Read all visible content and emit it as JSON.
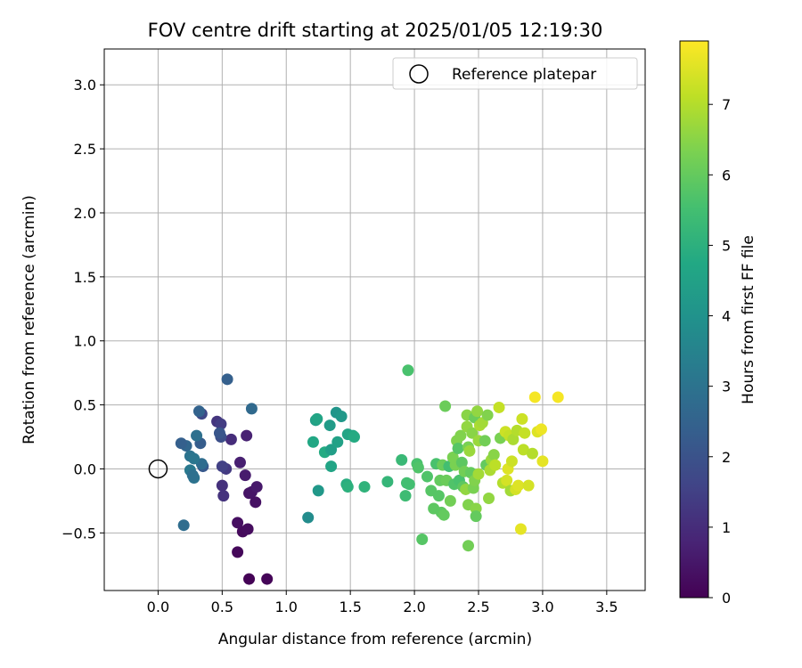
{
  "chart_data": {
    "type": "scatter",
    "title": "FOV centre drift starting at 2025/01/05 12:19:30",
    "xlabel": "Angular distance from reference (arcmin)",
    "ylabel": "Rotation from reference (arcmin)",
    "xlim": [
      -0.42,
      3.8
    ],
    "ylim": [
      -0.95,
      3.28
    ],
    "x_ticks": [
      0.0,
      0.5,
      1.0,
      1.5,
      2.0,
      2.5,
      3.0,
      3.5
    ],
    "x_tick_labels": [
      "0.0",
      "0.5",
      "1.0",
      "1.5",
      "2.0",
      "2.5",
      "3.0",
      "3.5"
    ],
    "y_ticks": [
      -0.5,
      0.0,
      0.5,
      1.0,
      1.5,
      2.0,
      2.5,
      3.0
    ],
    "y_tick_labels": [
      "−0.5",
      "0.0",
      "0.5",
      "1.0",
      "1.5",
      "2.0",
      "2.5",
      "3.0"
    ],
    "grid": true,
    "legend": {
      "position": "top-right",
      "entries": [
        "Reference platepar"
      ]
    },
    "reference": {
      "name": "Reference platepar",
      "x": 0.0,
      "y": 0.0
    },
    "colorbar": {
      "label": "Hours from first FF file",
      "range": [
        0,
        7.9
      ],
      "ticks": [
        0,
        1,
        2,
        3,
        4,
        5,
        6,
        7
      ],
      "tick_labels": [
        "0",
        "1",
        "2",
        "3",
        "4",
        "5",
        "6",
        "7"
      ],
      "colormap": "viridis"
    },
    "points": [
      {
        "x": 0.71,
        "y": -0.86,
        "c": 0.05
      },
      {
        "x": 0.85,
        "y": -0.86,
        "c": 0.1
      },
      {
        "x": 0.62,
        "y": -0.65,
        "c": 0.15
      },
      {
        "x": 0.66,
        "y": -0.49,
        "c": 0.2
      },
      {
        "x": 0.7,
        "y": -0.47,
        "c": 0.25
      },
      {
        "x": 0.62,
        "y": -0.42,
        "c": 0.3
      },
      {
        "x": 0.76,
        "y": -0.26,
        "c": 0.35
      },
      {
        "x": 0.71,
        "y": -0.19,
        "c": 0.4
      },
      {
        "x": 0.73,
        "y": -0.18,
        "c": 0.45
      },
      {
        "x": 0.77,
        "y": -0.14,
        "c": 0.55
      },
      {
        "x": 0.68,
        "y": -0.05,
        "c": 0.6
      },
      {
        "x": 0.64,
        "y": 0.05,
        "c": 0.7
      },
      {
        "x": 0.69,
        "y": 0.26,
        "c": 0.75
      },
      {
        "x": 0.57,
        "y": 0.23,
        "c": 1.0
      },
      {
        "x": 0.5,
        "y": -0.13,
        "c": 1.1
      },
      {
        "x": 0.51,
        "y": -0.21,
        "c": 1.15
      },
      {
        "x": 0.46,
        "y": 0.37,
        "c": 1.2
      },
      {
        "x": 0.53,
        "y": 0.0,
        "c": 1.3
      },
      {
        "x": 0.49,
        "y": 0.35,
        "c": 1.4
      },
      {
        "x": 0.5,
        "y": 0.02,
        "c": 1.5
      },
      {
        "x": 0.34,
        "y": 0.43,
        "c": 1.7
      },
      {
        "x": 0.49,
        "y": 0.25,
        "c": 1.9
      },
      {
        "x": 0.48,
        "y": 0.28,
        "c": 2.1
      },
      {
        "x": 0.54,
        "y": 0.7,
        "c": 2.4
      },
      {
        "x": 0.73,
        "y": 0.47,
        "c": 2.7
      },
      {
        "x": 0.32,
        "y": 0.45,
        "c": 2.5
      },
      {
        "x": 0.33,
        "y": 0.2,
        "c": 2.3
      },
      {
        "x": 0.22,
        "y": 0.18,
        "c": 2.6
      },
      {
        "x": 0.18,
        "y": 0.2,
        "c": 2.4
      },
      {
        "x": 0.3,
        "y": 0.26,
        "c": 2.9
      },
      {
        "x": 0.35,
        "y": 0.02,
        "c": 2.2
      },
      {
        "x": 0.34,
        "y": 0.04,
        "c": 2.8
      },
      {
        "x": 0.25,
        "y": 0.1,
        "c": 3.0
      },
      {
        "x": 0.28,
        "y": 0.08,
        "c": 3.1
      },
      {
        "x": 0.25,
        "y": -0.01,
        "c": 3.2
      },
      {
        "x": 0.28,
        "y": -0.07,
        "c": 3.0
      },
      {
        "x": 0.27,
        "y": -0.05,
        "c": 2.9
      },
      {
        "x": 0.2,
        "y": -0.44,
        "c": 2.8
      },
      {
        "x": 1.17,
        "y": -0.38,
        "c": 3.8
      },
      {
        "x": 1.25,
        "y": -0.17,
        "c": 4.2
      },
      {
        "x": 1.23,
        "y": 0.38,
        "c": 4.4
      },
      {
        "x": 1.24,
        "y": 0.39,
        "c": 4.6
      },
      {
        "x": 1.21,
        "y": 0.21,
        "c": 4.7
      },
      {
        "x": 1.3,
        "y": 0.13,
        "c": 4.8
      },
      {
        "x": 1.35,
        "y": 0.02,
        "c": 4.6
      },
      {
        "x": 1.35,
        "y": 0.15,
        "c": 4.4
      },
      {
        "x": 1.34,
        "y": 0.34,
        "c": 4.3
      },
      {
        "x": 1.39,
        "y": 0.44,
        "c": 4.1
      },
      {
        "x": 1.43,
        "y": 0.41,
        "c": 4.2
      },
      {
        "x": 1.4,
        "y": 0.21,
        "c": 4.5
      },
      {
        "x": 1.48,
        "y": 0.27,
        "c": 4.6
      },
      {
        "x": 1.52,
        "y": 0.26,
        "c": 4.7
      },
      {
        "x": 1.53,
        "y": 0.25,
        "c": 4.8
      },
      {
        "x": 1.47,
        "y": -0.12,
        "c": 4.9
      },
      {
        "x": 1.48,
        "y": -0.14,
        "c": 5.0
      },
      {
        "x": 1.61,
        "y": -0.14,
        "c": 5.1
      },
      {
        "x": 1.79,
        "y": -0.1,
        "c": 5.2
      },
      {
        "x": 1.9,
        "y": 0.07,
        "c": 5.3
      },
      {
        "x": 1.93,
        "y": -0.21,
        "c": 5.4
      },
      {
        "x": 1.94,
        "y": -0.11,
        "c": 5.5
      },
      {
        "x": 1.95,
        "y": 0.77,
        "c": 5.6
      },
      {
        "x": 1.96,
        "y": -0.12,
        "c": 5.5
      },
      {
        "x": 2.02,
        "y": 0.04,
        "c": 5.6
      },
      {
        "x": 2.03,
        "y": 0.01,
        "c": 5.7
      },
      {
        "x": 2.06,
        "y": -0.55,
        "c": 5.8
      },
      {
        "x": 2.1,
        "y": -0.06,
        "c": 5.7
      },
      {
        "x": 2.13,
        "y": -0.17,
        "c": 5.8
      },
      {
        "x": 2.15,
        "y": -0.31,
        "c": 5.9
      },
      {
        "x": 2.17,
        "y": 0.04,
        "c": 5.6
      },
      {
        "x": 2.19,
        "y": -0.21,
        "c": 5.8
      },
      {
        "x": 2.2,
        "y": -0.09,
        "c": 6.0
      },
      {
        "x": 2.21,
        "y": -0.34,
        "c": 5.9
      },
      {
        "x": 2.22,
        "y": 0.03,
        "c": 6.1
      },
      {
        "x": 2.23,
        "y": -0.36,
        "c": 6.0
      },
      {
        "x": 2.24,
        "y": 0.49,
        "c": 6.1
      },
      {
        "x": 2.25,
        "y": -0.09,
        "c": 6.1
      },
      {
        "x": 2.27,
        "y": 0.02,
        "c": 5.5
      },
      {
        "x": 2.28,
        "y": -0.25,
        "c": 6.2
      },
      {
        "x": 2.3,
        "y": 0.09,
        "c": 6.3
      },
      {
        "x": 2.31,
        "y": -0.12,
        "c": 5.7
      },
      {
        "x": 2.32,
        "y": 0.03,
        "c": 6.3
      },
      {
        "x": 2.33,
        "y": 0.22,
        "c": 6.4
      },
      {
        "x": 2.34,
        "y": 0.16,
        "c": 5.8
      },
      {
        "x": 2.35,
        "y": -0.09,
        "c": 5.6
      },
      {
        "x": 2.36,
        "y": 0.26,
        "c": 6.4
      },
      {
        "x": 2.37,
        "y": 0.05,
        "c": 5.9
      },
      {
        "x": 2.38,
        "y": -0.14,
        "c": 5.9
      },
      {
        "x": 2.39,
        "y": -0.02,
        "c": 6.2
      },
      {
        "x": 2.4,
        "y": -0.16,
        "c": 6.6
      },
      {
        "x": 2.41,
        "y": 0.42,
        "c": 6.5
      },
      {
        "x": 2.41,
        "y": 0.33,
        "c": 6.6
      },
      {
        "x": 2.42,
        "y": 0.17,
        "c": 6.3
      },
      {
        "x": 2.42,
        "y": -0.28,
        "c": 6.4
      },
      {
        "x": 2.42,
        "y": -0.6,
        "c": 6.2
      },
      {
        "x": 2.43,
        "y": 0.14,
        "c": 6.7
      },
      {
        "x": 2.44,
        "y": -0.03,
        "c": 6.0
      },
      {
        "x": 2.45,
        "y": 0.28,
        "c": 6.5
      },
      {
        "x": 2.46,
        "y": -0.15,
        "c": 6.3
      },
      {
        "x": 2.47,
        "y": 0.4,
        "c": 6.1
      },
      {
        "x": 2.47,
        "y": -0.09,
        "c": 6.4
      },
      {
        "x": 2.48,
        "y": -0.31,
        "c": 6.5
      },
      {
        "x": 2.48,
        "y": -0.37,
        "c": 6.0
      },
      {
        "x": 2.49,
        "y": 0.45,
        "c": 6.6
      },
      {
        "x": 2.5,
        "y": 0.22,
        "c": 6.7
      },
      {
        "x": 2.5,
        "y": -0.04,
        "c": 6.8
      },
      {
        "x": 2.51,
        "y": 0.34,
        "c": 6.9
      },
      {
        "x": 2.53,
        "y": 0.36,
        "c": 6.8
      },
      {
        "x": 2.55,
        "y": 0.22,
        "c": 6.2
      },
      {
        "x": 2.56,
        "y": 0.03,
        "c": 6.0
      },
      {
        "x": 2.57,
        "y": 0.42,
        "c": 6.4
      },
      {
        "x": 2.58,
        "y": -0.23,
        "c": 6.6
      },
      {
        "x": 2.59,
        "y": -0.01,
        "c": 6.9
      },
      {
        "x": 2.6,
        "y": 0.07,
        "c": 6.7
      },
      {
        "x": 2.62,
        "y": 0.11,
        "c": 6.5
      },
      {
        "x": 2.63,
        "y": 0.03,
        "c": 7.1
      },
      {
        "x": 2.66,
        "y": 0.48,
        "c": 7.2
      },
      {
        "x": 2.67,
        "y": 0.24,
        "c": 6.3
      },
      {
        "x": 2.69,
        "y": -0.11,
        "c": 7.0
      },
      {
        "x": 2.71,
        "y": 0.29,
        "c": 7.3
      },
      {
        "x": 2.72,
        "y": -0.09,
        "c": 7.4
      },
      {
        "x": 2.73,
        "y": 0.0,
        "c": 7.5
      },
      {
        "x": 2.74,
        "y": 0.26,
        "c": 7.2
      },
      {
        "x": 2.75,
        "y": -0.17,
        "c": 6.8
      },
      {
        "x": 2.76,
        "y": 0.06,
        "c": 7.3
      },
      {
        "x": 2.77,
        "y": 0.23,
        "c": 6.9
      },
      {
        "x": 2.79,
        "y": -0.16,
        "c": 7.4
      },
      {
        "x": 2.8,
        "y": 0.3,
        "c": 7.0
      },
      {
        "x": 2.81,
        "y": -0.13,
        "c": 7.5
      },
      {
        "x": 2.83,
        "y": -0.47,
        "c": 7.6
      },
      {
        "x": 2.84,
        "y": 0.39,
        "c": 7.3
      },
      {
        "x": 2.85,
        "y": 0.15,
        "c": 7.1
      },
      {
        "x": 2.86,
        "y": 0.28,
        "c": 7.2
      },
      {
        "x": 2.89,
        "y": -0.13,
        "c": 7.4
      },
      {
        "x": 2.92,
        "y": 0.12,
        "c": 7.0
      },
      {
        "x": 2.94,
        "y": 0.56,
        "c": 7.8
      },
      {
        "x": 2.96,
        "y": 0.29,
        "c": 7.5
      },
      {
        "x": 2.99,
        "y": 0.31,
        "c": 7.7
      },
      {
        "x": 3.0,
        "y": 0.06,
        "c": 7.6
      },
      {
        "x": 3.12,
        "y": 0.56,
        "c": 7.8
      }
    ]
  }
}
